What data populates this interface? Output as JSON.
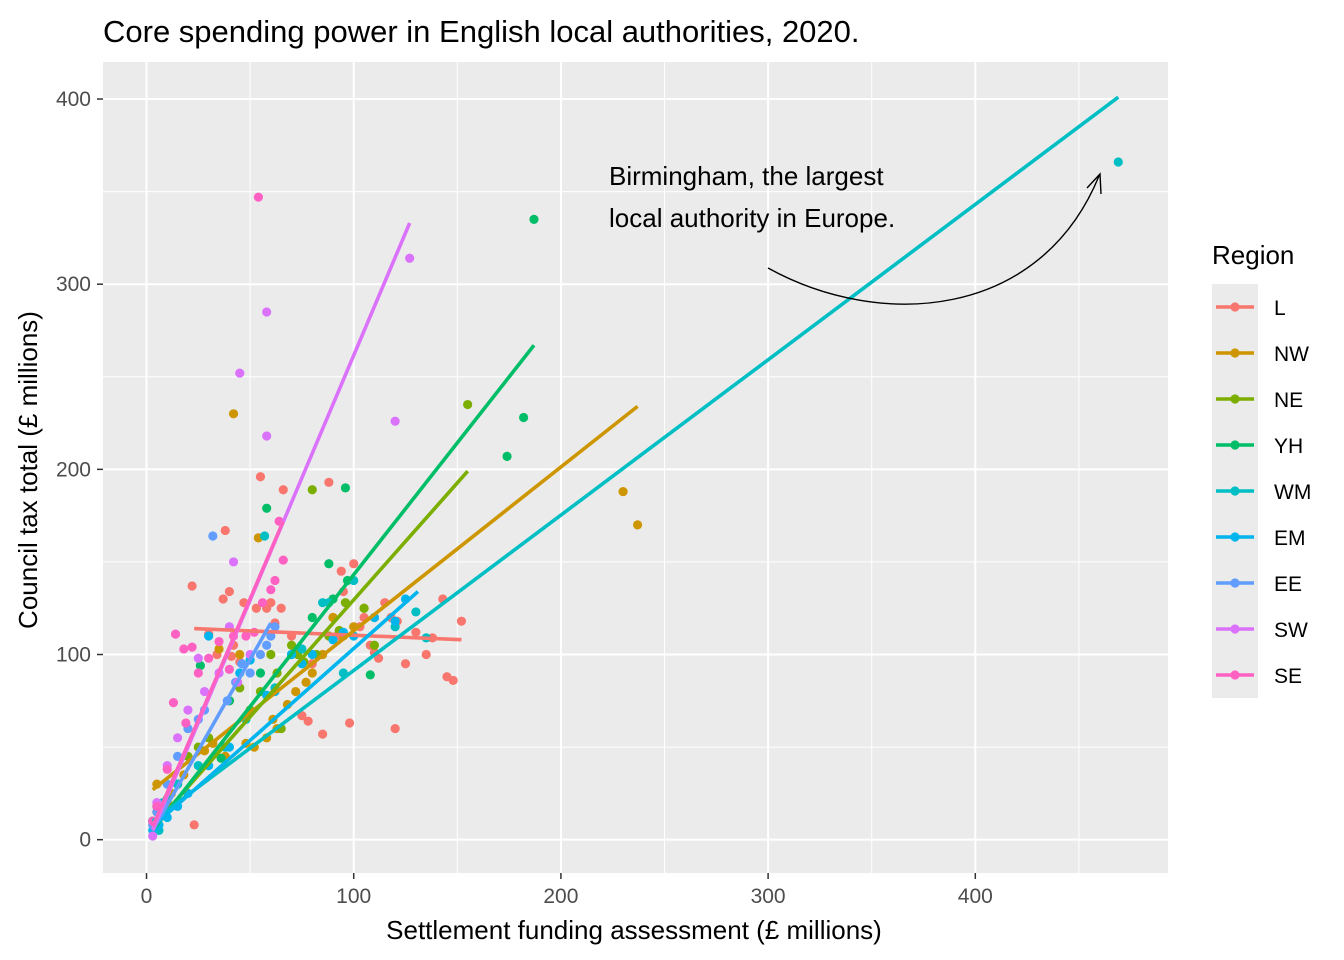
{
  "chart_data": {
    "type": "scatter",
    "title": "Core spending power in English local authorities, 2020.",
    "xlabel": "Settlement funding assessment (£ millions)",
    "ylabel": "Council tax total (£ millions)",
    "xlim": [
      -21,
      493
    ],
    "ylim": [
      -18,
      420
    ],
    "xticks": [
      0,
      100,
      200,
      300,
      400
    ],
    "yticks": [
      0,
      100,
      200,
      300,
      400
    ],
    "xtick_labels": [
      "0",
      "100",
      "200",
      "300",
      "400"
    ],
    "ytick_labels": [
      "0",
      "100",
      "200",
      "300",
      "400"
    ],
    "grid": true,
    "legend": {
      "title": "Region",
      "position": "right"
    },
    "annotation": {
      "lines": [
        "Birmingham, the largest",
        "local authority in Europe."
      ]
    },
    "series": [
      {
        "name": "L",
        "color": "#F8766D",
        "points": [
          [
            22,
            137
          ],
          [
            38,
            167
          ],
          [
            40,
            134
          ],
          [
            37,
            130
          ],
          [
            42,
            105
          ],
          [
            45,
            96
          ],
          [
            55,
            196
          ],
          [
            60,
            128
          ],
          [
            65,
            125
          ],
          [
            66,
            189
          ],
          [
            72,
            102
          ],
          [
            75,
            67
          ],
          [
            78,
            64
          ],
          [
            85,
            57
          ],
          [
            88,
            193
          ],
          [
            92,
            110
          ],
          [
            94,
            145
          ],
          [
            95,
            134
          ],
          [
            98,
            63
          ],
          [
            100,
            149
          ],
          [
            105,
            120
          ],
          [
            110,
            101
          ],
          [
            112,
            98
          ],
          [
            115,
            128
          ],
          [
            118,
            120
          ],
          [
            120,
            60
          ],
          [
            121,
            118
          ],
          [
            138,
            109
          ],
          [
            143,
            130
          ],
          [
            145,
            88
          ],
          [
            148,
            86
          ],
          [
            152,
            118
          ],
          [
            23,
            8
          ],
          [
            30,
            111
          ],
          [
            34,
            100
          ],
          [
            41,
            99
          ],
          [
            47,
            128
          ],
          [
            53,
            125
          ],
          [
            58,
            125
          ],
          [
            62,
            117
          ],
          [
            70,
            110
          ],
          [
            80,
            95
          ],
          [
            90,
            120
          ],
          [
            103,
            115
          ],
          [
            108,
            105
          ],
          [
            125,
            95
          ],
          [
            130,
            112
          ],
          [
            135,
            100
          ]
        ],
        "fit": [
          [
            23,
            114
          ],
          [
            152,
            108
          ]
        ]
      },
      {
        "name": "NW",
        "color": "#CD9600",
        "points": [
          [
            42,
            230
          ],
          [
            230,
            188
          ],
          [
            237,
            170
          ],
          [
            48,
            52
          ],
          [
            52,
            50
          ],
          [
            54,
            163
          ],
          [
            58,
            55
          ],
          [
            61,
            65
          ],
          [
            63,
            60
          ],
          [
            72,
            80
          ],
          [
            80,
            90
          ],
          [
            85,
            100
          ],
          [
            90,
            120
          ],
          [
            95,
            110
          ],
          [
            100,
            115
          ],
          [
            105,
            125
          ],
          [
            110,
            120
          ],
          [
            38,
            45
          ],
          [
            35,
            103
          ],
          [
            45,
            100
          ],
          [
            68,
            73
          ],
          [
            77,
            85
          ],
          [
            5,
            30
          ],
          [
            8,
            20
          ],
          [
            12,
            25
          ],
          [
            18,
            35
          ],
          [
            28,
            48
          ],
          [
            32,
            52
          ]
        ],
        "fit": [
          [
            3,
            27
          ],
          [
            237,
            234
          ]
        ]
      },
      {
        "name": "NE",
        "color": "#7CAE00",
        "points": [
          [
            55,
            80
          ],
          [
            60,
            100
          ],
          [
            63,
            90
          ],
          [
            65,
            60
          ],
          [
            70,
            105
          ],
          [
            73,
            100
          ],
          [
            76,
            96
          ],
          [
            82,
            100
          ],
          [
            88,
            110
          ],
          [
            93,
            113
          ],
          [
            96,
            128
          ],
          [
            105,
            125
          ],
          [
            110,
            105
          ],
          [
            155,
            235
          ],
          [
            80,
            189
          ],
          [
            40,
            75
          ],
          [
            45,
            82
          ],
          [
            50,
            70
          ],
          [
            30,
            55
          ],
          [
            25,
            50
          ],
          [
            20,
            45
          ],
          [
            15,
            30
          ],
          [
            10,
            20
          ],
          [
            5,
            15
          ],
          [
            3,
            10
          ]
        ],
        "fit": [
          [
            3,
            7
          ],
          [
            155,
            199
          ]
        ]
      },
      {
        "name": "YH",
        "color": "#00BE67",
        "points": [
          [
            187,
            335
          ],
          [
            174,
            207
          ],
          [
            182,
            228
          ],
          [
            96,
            190
          ],
          [
            58,
            179
          ],
          [
            26,
            94
          ],
          [
            36,
            44
          ],
          [
            88,
            149
          ],
          [
            108,
            89
          ],
          [
            97,
            140
          ],
          [
            40,
            75
          ],
          [
            55,
            90
          ],
          [
            70,
            100
          ],
          [
            80,
            120
          ],
          [
            90,
            130
          ],
          [
            15,
            30
          ],
          [
            10,
            22
          ],
          [
            5,
            18
          ]
        ],
        "fit": [
          [
            3,
            5
          ],
          [
            187,
            267
          ]
        ]
      },
      {
        "name": "WM",
        "color": "#00BFC4",
        "points": [
          [
            469,
            366
          ],
          [
            57,
            164
          ],
          [
            100,
            140
          ],
          [
            120,
            115
          ],
          [
            130,
            123
          ],
          [
            135,
            109
          ],
          [
            95,
            90
          ],
          [
            85,
            128
          ],
          [
            88,
            128
          ],
          [
            75,
            103
          ],
          [
            62,
            82
          ],
          [
            48,
            65
          ],
          [
            38,
            50
          ],
          [
            25,
            40
          ],
          [
            15,
            30
          ],
          [
            8,
            20
          ],
          [
            3,
            10
          ],
          [
            6,
            5
          ]
        ],
        "fit": [
          [
            3,
            10
          ],
          [
            469,
            401
          ]
        ]
      },
      {
        "name": "EM",
        "color": "#00B5EE",
        "points": [
          [
            30,
            110
          ],
          [
            45,
            90
          ],
          [
            50,
            97
          ],
          [
            58,
            78
          ],
          [
            62,
            80
          ],
          [
            70,
            100
          ],
          [
            75,
            95
          ],
          [
            80,
            100
          ],
          [
            90,
            108
          ],
          [
            95,
            112
          ],
          [
            100,
            110
          ],
          [
            110,
            120
          ],
          [
            120,
            118
          ],
          [
            125,
            130
          ],
          [
            3,
            5
          ],
          [
            6,
            8
          ],
          [
            10,
            12
          ],
          [
            15,
            18
          ],
          [
            20,
            25
          ],
          [
            30,
            40
          ],
          [
            40,
            50
          ]
        ],
        "fit": [
          [
            3,
            7
          ],
          [
            131,
            134
          ]
        ]
      },
      {
        "name": "EE",
        "color": "#619CFF",
        "points": [
          [
            32,
            164
          ],
          [
            39,
            75
          ],
          [
            43,
            85
          ],
          [
            46,
            95
          ],
          [
            50,
            90
          ],
          [
            55,
            100
          ],
          [
            58,
            105
          ],
          [
            60,
            110
          ],
          [
            62,
            115
          ],
          [
            28,
            70
          ],
          [
            25,
            65
          ],
          [
            20,
            60
          ],
          [
            15,
            45
          ],
          [
            10,
            30
          ],
          [
            5,
            15
          ],
          [
            3,
            8
          ]
        ],
        "fit": [
          [
            3,
            5
          ],
          [
            60,
            117
          ]
        ]
      },
      {
        "name": "SW",
        "color": "#DB72FB",
        "points": [
          [
            45,
            252
          ],
          [
            58,
            285
          ],
          [
            58,
            218
          ],
          [
            127,
            314
          ],
          [
            120,
            226
          ],
          [
            42,
            150
          ],
          [
            40,
            115
          ],
          [
            44,
            85
          ],
          [
            50,
            100
          ],
          [
            25,
            98
          ],
          [
            35,
            90
          ],
          [
            28,
            80
          ],
          [
            20,
            70
          ],
          [
            15,
            55
          ],
          [
            10,
            40
          ],
          [
            5,
            20
          ],
          [
            3,
            2
          ]
        ],
        "fit": [
          [
            3,
            5
          ],
          [
            127,
            333
          ]
        ]
      },
      {
        "name": "SE",
        "color": "#FF61C3",
        "points": [
          [
            54,
            347
          ],
          [
            66,
            151
          ],
          [
            14,
            111
          ],
          [
            13,
            74
          ],
          [
            18,
            103
          ],
          [
            19,
            63
          ],
          [
            22,
            104
          ],
          [
            40,
            92
          ],
          [
            42,
            110
          ],
          [
            48,
            110
          ],
          [
            52,
            112
          ],
          [
            56,
            128
          ],
          [
            60,
            135
          ],
          [
            62,
            140
          ],
          [
            64,
            172
          ],
          [
            30,
            98
          ],
          [
            35,
            107
          ],
          [
            25,
            90
          ],
          [
            10,
            38
          ],
          [
            5,
            18
          ],
          [
            3,
            10
          ]
        ],
        "fit": [
          [
            3,
            7
          ],
          [
            66,
            172
          ]
        ]
      }
    ]
  }
}
